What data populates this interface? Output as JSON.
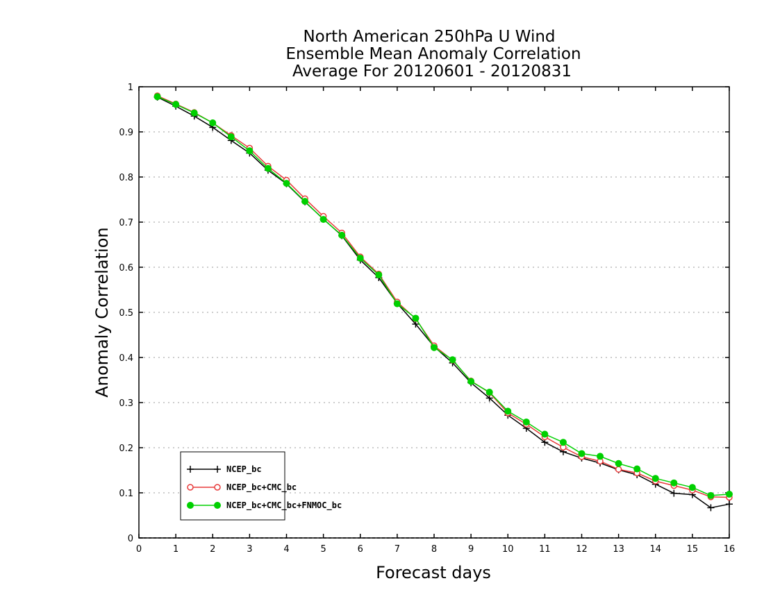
{
  "chart_data": {
    "type": "line",
    "title": [
      "North American 250hPa U Wind",
      "Ensemble Mean Anomaly Correlation",
      "Average For 20120601 - 20120831"
    ],
    "xlabel": "Forecast days",
    "ylabel": "Anomaly Correlation",
    "xlim": [
      0,
      16
    ],
    "ylim": [
      0,
      1
    ],
    "xticks": [
      "0",
      "1",
      "2",
      "3",
      "4",
      "5",
      "6",
      "7",
      "8",
      "9",
      "10",
      "11",
      "12",
      "13",
      "14",
      "15",
      "16"
    ],
    "yticks": [
      "0",
      "0.1",
      "0.2",
      "0.3",
      "0.4",
      "0.5",
      "0.6",
      "0.7",
      "0.8",
      "0.9",
      "1"
    ],
    "grid": "horizontal dotted",
    "legend_position": "bottom-left",
    "x": [
      0.5,
      1,
      1.5,
      2,
      2.5,
      3,
      3.5,
      4,
      4.5,
      5,
      5.5,
      6,
      6.5,
      7,
      7.5,
      8,
      8.5,
      9,
      9.5,
      10,
      10.5,
      11,
      11.5,
      12,
      12.5,
      13,
      13.5,
      14,
      14.5,
      15,
      15.5,
      16
    ],
    "series": [
      {
        "name": "NCEP_bc",
        "color": "#000000",
        "marker": "plus",
        "values": [
          0.977,
          0.957,
          0.935,
          0.91,
          0.881,
          0.853,
          0.815,
          0.785,
          0.745,
          0.707,
          0.67,
          0.616,
          0.577,
          0.52,
          0.474,
          0.424,
          0.388,
          0.344,
          0.31,
          0.272,
          0.243,
          0.212,
          0.191,
          0.177,
          0.166,
          0.151,
          0.14,
          0.119,
          0.099,
          0.096,
          0.067,
          0.075
        ]
      },
      {
        "name": "NCEP_bc+CMC_bc",
        "color": "#e83a3a",
        "marker": "open-circle",
        "values": [
          0.98,
          0.962,
          0.943,
          0.92,
          0.892,
          0.864,
          0.824,
          0.793,
          0.752,
          0.713,
          0.676,
          0.623,
          0.585,
          0.523,
          0.486,
          0.426,
          0.394,
          0.348,
          0.322,
          0.277,
          0.252,
          0.224,
          0.201,
          0.18,
          0.17,
          0.152,
          0.144,
          0.126,
          0.116,
          0.106,
          0.091,
          0.09
        ]
      },
      {
        "name": "NCEP_bc+CMC_bc+FNMOC_bc",
        "color": "#00d000",
        "marker": "filled-circle",
        "values": [
          0.978,
          0.961,
          0.942,
          0.92,
          0.889,
          0.858,
          0.819,
          0.786,
          0.746,
          0.706,
          0.671,
          0.62,
          0.583,
          0.519,
          0.487,
          0.422,
          0.395,
          0.347,
          0.323,
          0.281,
          0.257,
          0.23,
          0.212,
          0.187,
          0.181,
          0.165,
          0.153,
          0.132,
          0.122,
          0.112,
          0.094,
          0.097
        ]
      }
    ]
  }
}
